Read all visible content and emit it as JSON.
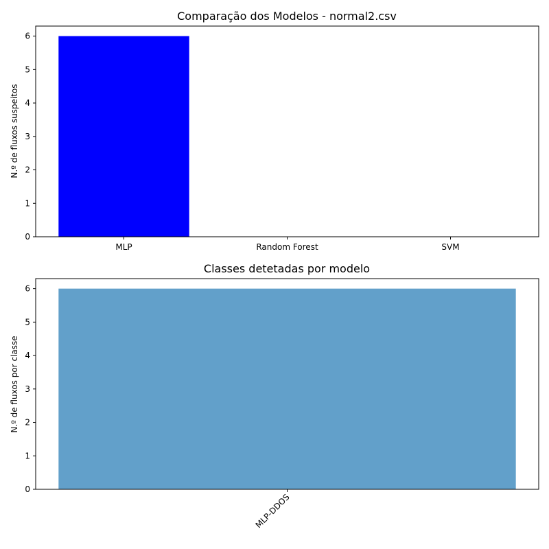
{
  "chart_data": [
    {
      "type": "bar",
      "title": "Comparação dos Modelos - normal2.csv",
      "xlabel": "",
      "ylabel": "N.º de fluxos suspeitos",
      "categories": [
        "MLP",
        "Random Forest",
        "SVM"
      ],
      "values": [
        6,
        0,
        0
      ],
      "ylim": [
        0,
        6.3
      ],
      "yticks": [
        0,
        1,
        2,
        3,
        4,
        5,
        6
      ],
      "color": "#0000ff",
      "grid": false
    },
    {
      "type": "bar",
      "title": "Classes detetadas por modelo",
      "xlabel": "",
      "ylabel": "N.º de fluxos por classe",
      "categories": [
        "MLP-DDOS"
      ],
      "values": [
        6
      ],
      "ylim": [
        0,
        6.3
      ],
      "yticks": [
        0,
        1,
        2,
        3,
        4,
        5,
        6
      ],
      "color": "#62a0ca",
      "xtick_rotation": 45,
      "grid": false
    }
  ]
}
